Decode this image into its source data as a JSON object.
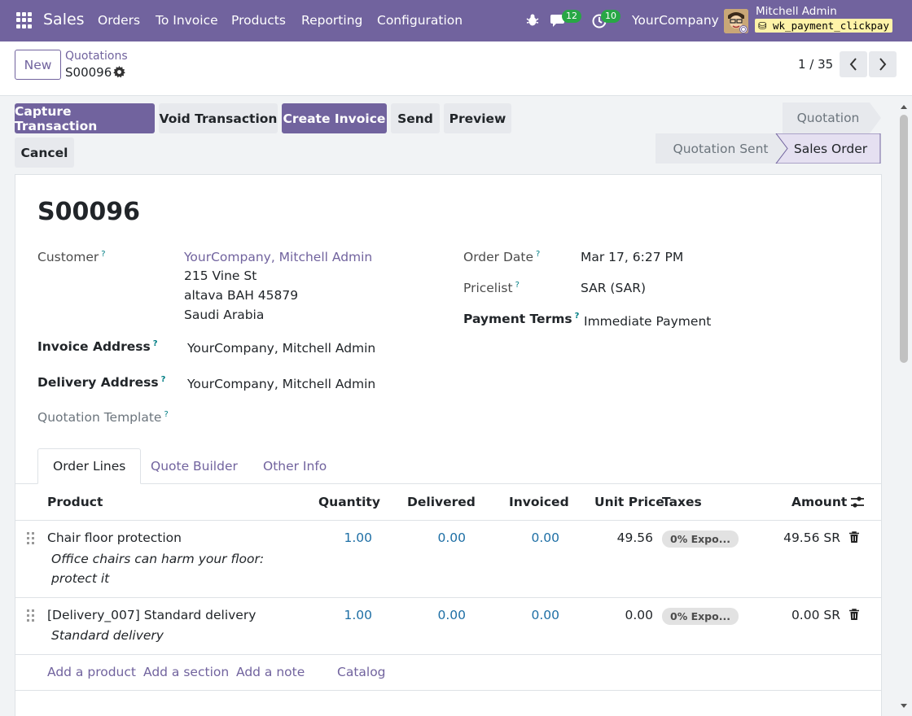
{
  "topbar": {
    "brand": "Sales",
    "menu": [
      "Orders",
      "To Invoice",
      "Products",
      "Reporting",
      "Configuration"
    ],
    "messages_count": "12",
    "activities_count": "10",
    "company": "YourCompany",
    "user_name": "Mitchell Admin",
    "database": "wk_payment_clickpay"
  },
  "control": {
    "new_label": "New",
    "breadcrumb_parent": "Quotations",
    "breadcrumb_current": "S00096",
    "pager": "1 / 35"
  },
  "actions": {
    "capture": "Capture Transaction",
    "void": "Void Transaction",
    "create_invoice": "Create Invoice",
    "send": "Send",
    "preview": "Preview",
    "cancel": "Cancel"
  },
  "statusbar": {
    "quotation": "Quotation",
    "quotation_sent": "Quotation Sent",
    "sales_order": "Sales Order"
  },
  "form": {
    "title": "S00096",
    "customer_label": "Customer",
    "customer_name": "YourCompany, Mitchell Admin",
    "customer_street": "215 Vine St",
    "customer_city": "altava BAH 45879",
    "customer_country": "Saudi Arabia",
    "invoice_address_label": "Invoice Address",
    "invoice_address": "YourCompany, Mitchell Admin",
    "delivery_address_label": "Delivery Address",
    "delivery_address": "YourCompany, Mitchell Admin",
    "quotation_template_label": "Quotation Template",
    "order_date_label": "Order Date",
    "order_date": "Mar 17, 6:27 PM",
    "pricelist_label": "Pricelist",
    "pricelist": "SAR (SAR)",
    "payment_terms_label": "Payment Terms",
    "payment_terms": "Immediate Payment",
    "help_mark": "?"
  },
  "tabs": [
    "Order Lines",
    "Quote Builder",
    "Other Info"
  ],
  "columns": {
    "product": "Product",
    "quantity": "Quantity",
    "delivered": "Delivered",
    "invoiced": "Invoiced",
    "unit_price": "Unit Price",
    "taxes": "Taxes",
    "amount": "Amount"
  },
  "lines": [
    {
      "product": "Chair floor protection",
      "desc1": "Office chairs can harm your floor:",
      "desc2": "protect it",
      "quantity": "1.00",
      "delivered": "0.00",
      "invoiced": "0.00",
      "unit_price": "49.56",
      "tax": "0% Expo...",
      "amount": "49.56 SR"
    },
    {
      "product": "[Delivery_007] Standard delivery",
      "desc1": "Standard delivery",
      "quantity": "1.00",
      "delivered": "0.00",
      "invoiced": "0.00",
      "unit_price": "0.00",
      "tax": "0% Expo...",
      "amount": "0.00 SR"
    }
  ],
  "add_links": {
    "product": "Add a product",
    "section": "Add a section",
    "note": "Add a note",
    "catalog": "Catalog"
  }
}
